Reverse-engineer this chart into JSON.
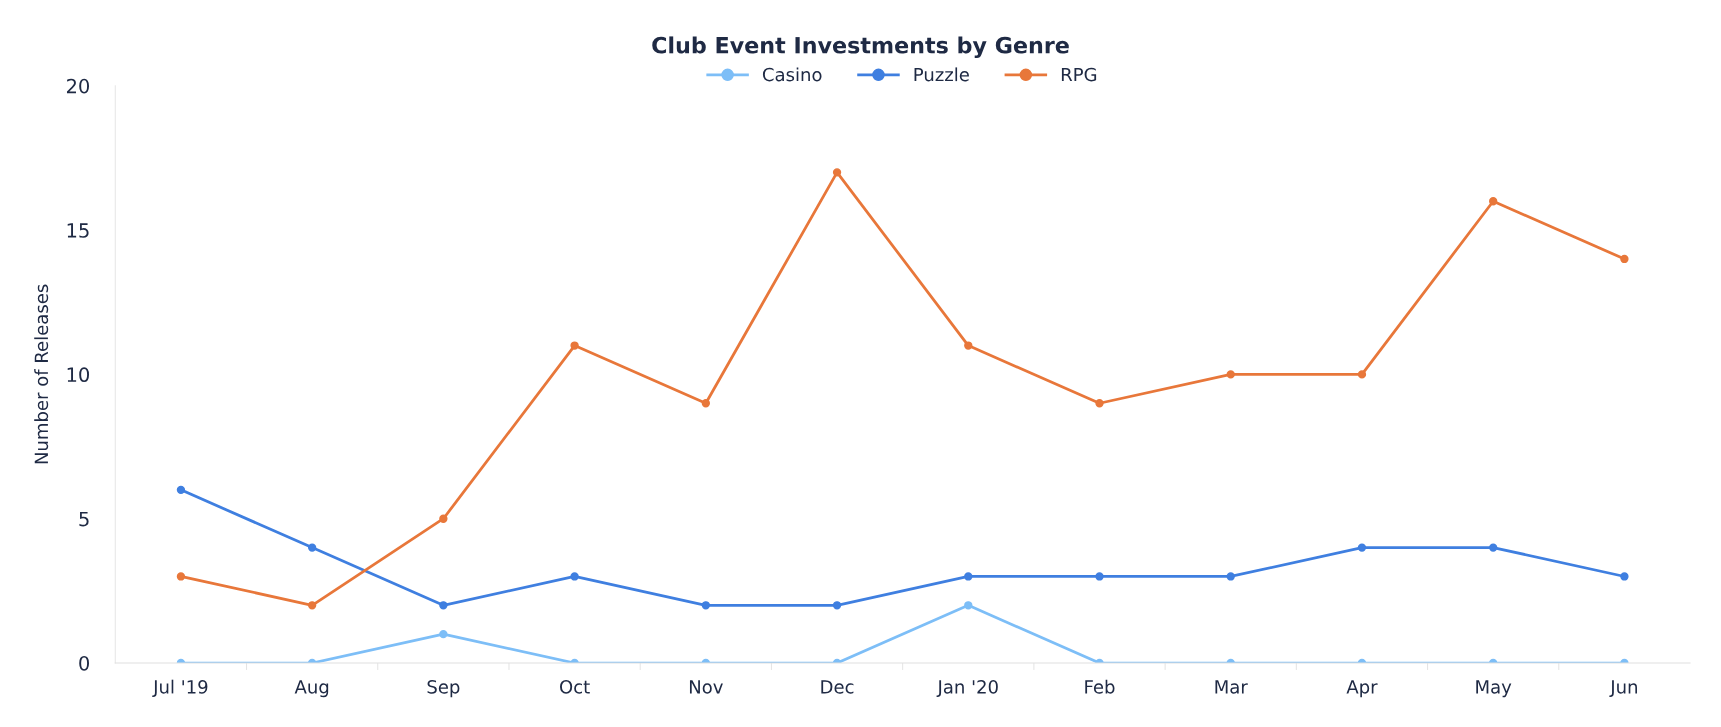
{
  "chart_data": {
    "type": "line",
    "title": "Club Event Investments by Genre",
    "ylabel": "Number of Releases",
    "categories": [
      "Jul '19",
      "Aug",
      "Sep",
      "Oct",
      "Nov",
      "Dec",
      "Jan '20",
      "Feb",
      "Mar",
      "Apr",
      "May",
      "Jun"
    ],
    "series": [
      {
        "name": "Casino",
        "color": "#7dbef7",
        "values": [
          0,
          0,
          1,
          0,
          0,
          0,
          2,
          0,
          0,
          0,
          0,
          0
        ]
      },
      {
        "name": "Puzzle",
        "color": "#3f7fe0",
        "values": [
          6,
          4,
          2,
          3,
          2,
          2,
          3,
          3,
          3,
          4,
          4,
          3
        ]
      },
      {
        "name": "RPG",
        "color": "#e8773a",
        "values": [
          3,
          2,
          5,
          11,
          9,
          17,
          11,
          9,
          10,
          10,
          16,
          14
        ]
      }
    ],
    "ylim": [
      0,
      20
    ],
    "yticks": [
      0,
      5,
      10,
      15,
      20
    ],
    "grid": false,
    "legend": "top",
    "marker": "circle",
    "line_style": "solid"
  }
}
